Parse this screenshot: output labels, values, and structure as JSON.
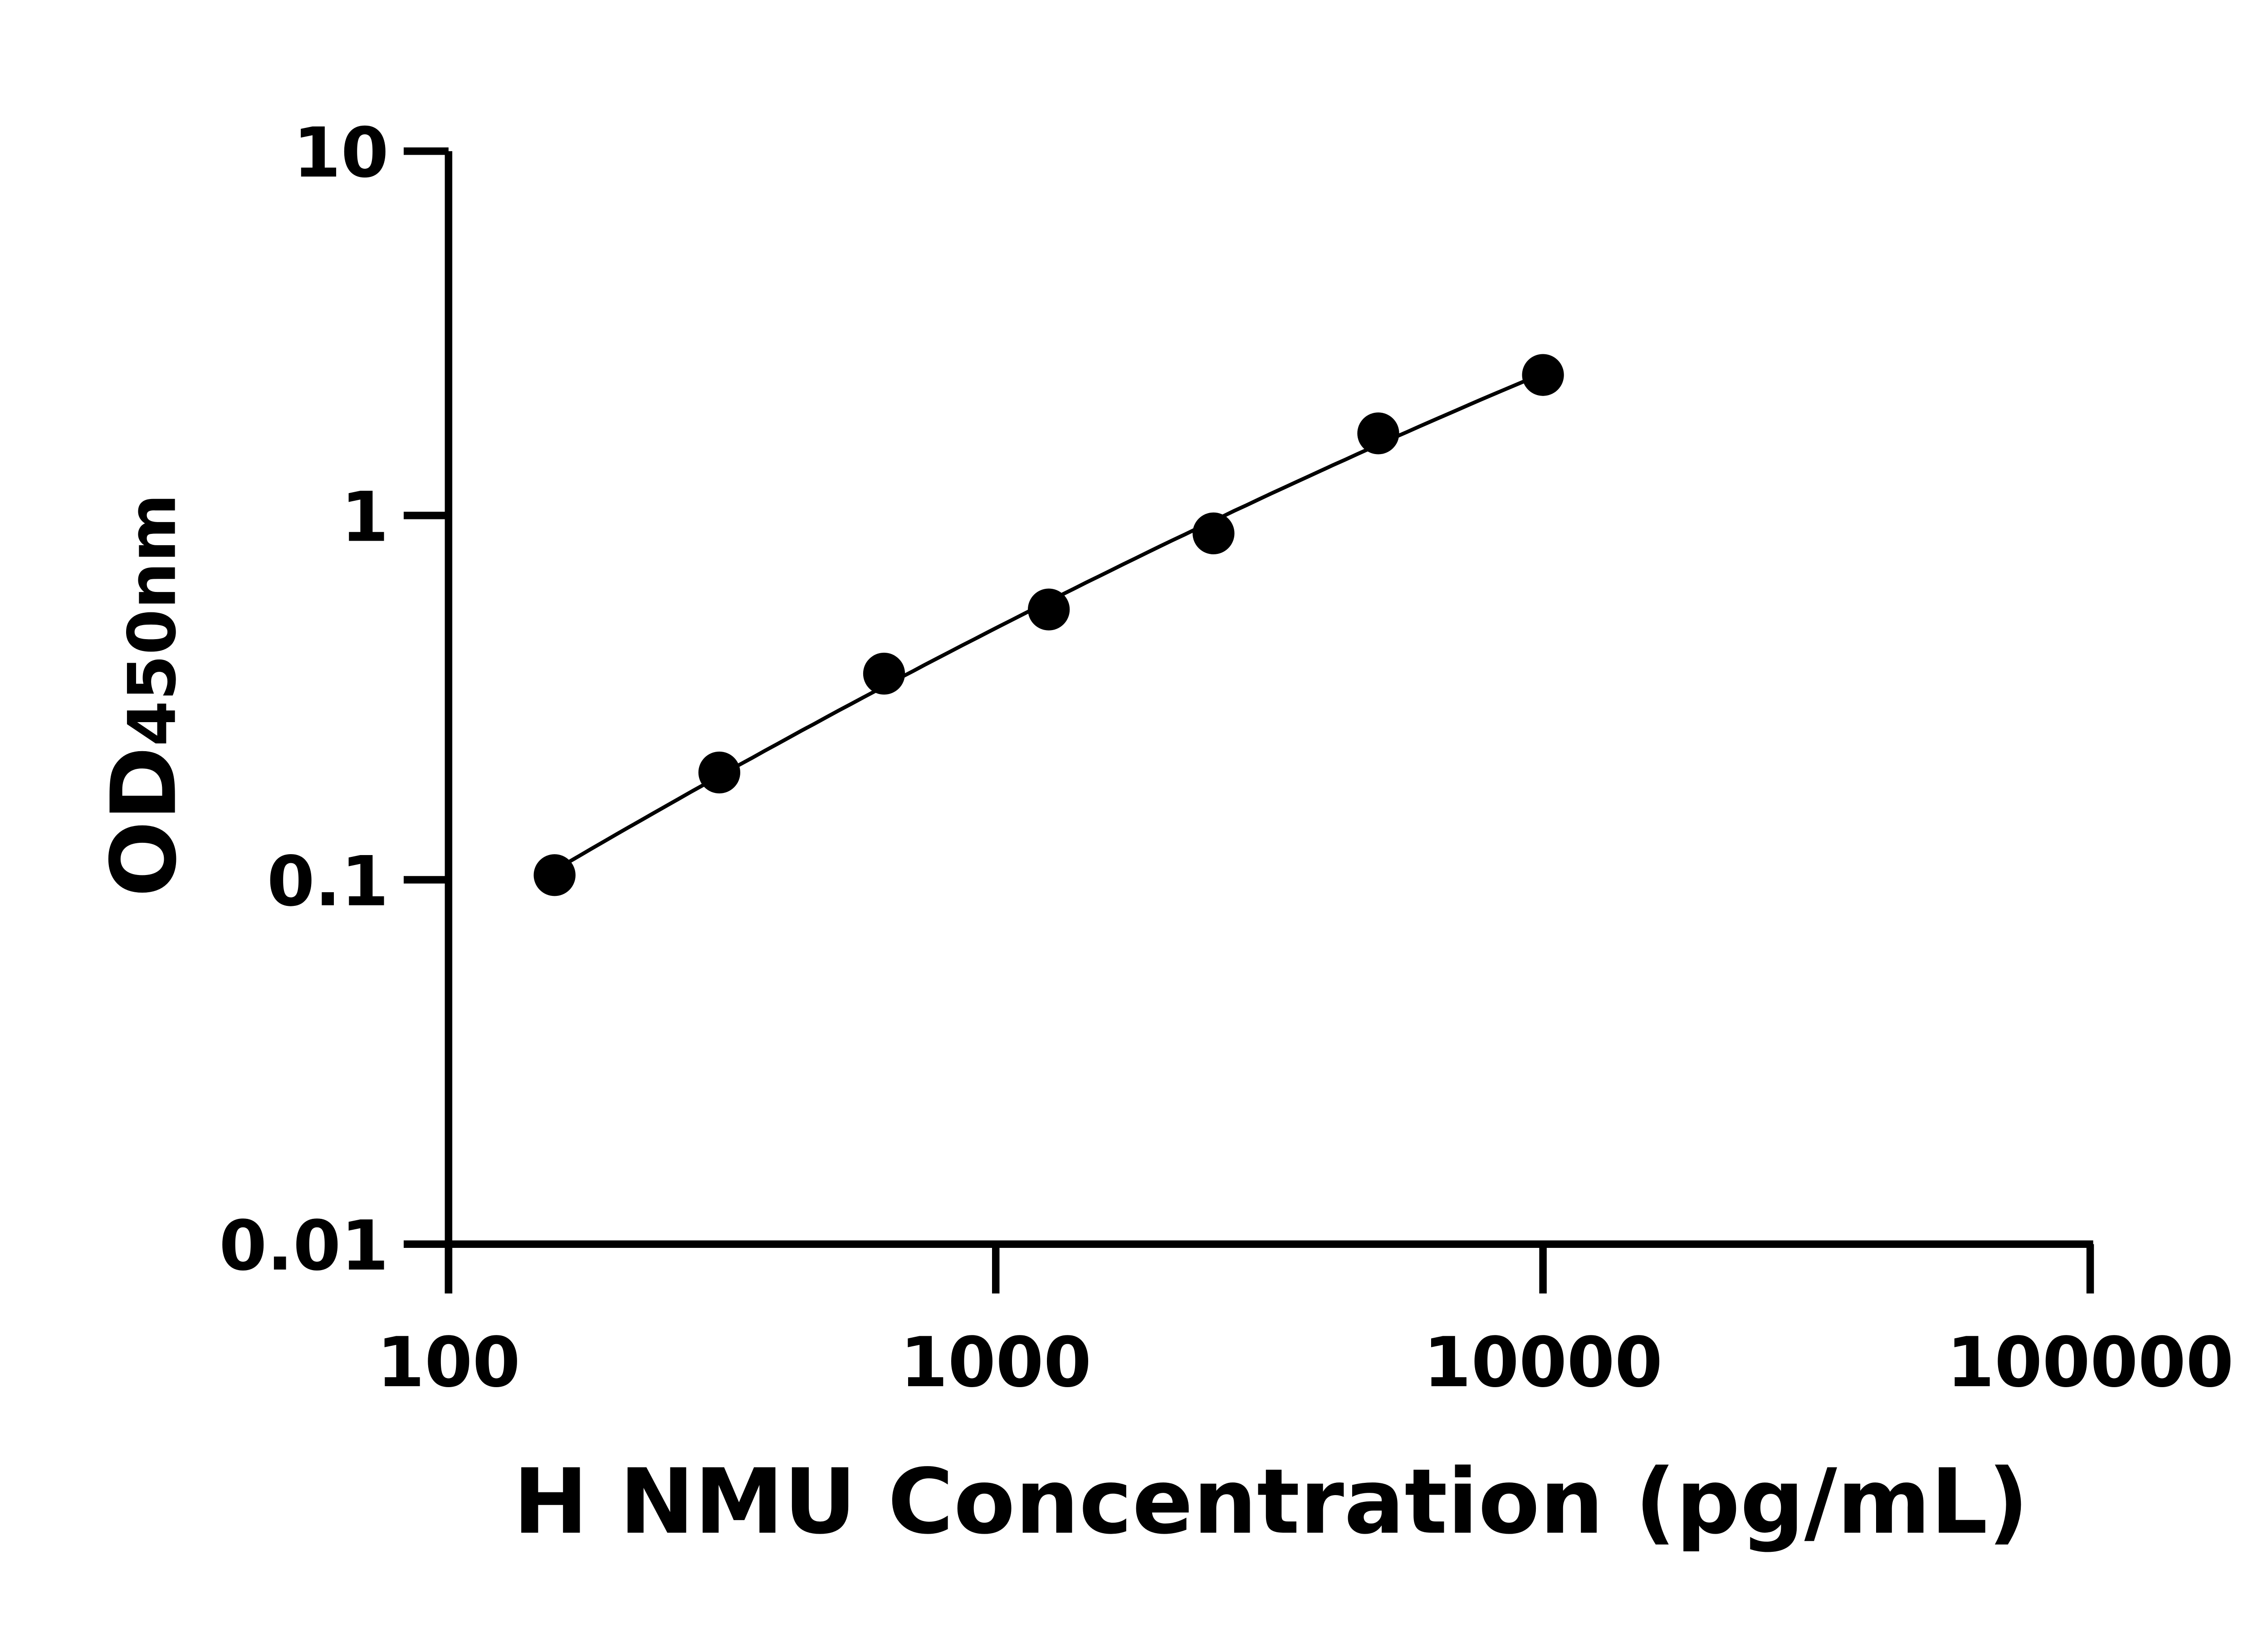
{
  "chart_data": {
    "type": "scatter",
    "title": "",
    "xlabel": "H NMU Concentration (pg/mL)",
    "ylabel": {
      "main": "OD",
      "sub": "450nm"
    },
    "x_scale": "log",
    "y_scale": "log",
    "xlim": [
      100,
      100000
    ],
    "ylim": [
      0.01,
      10
    ],
    "x_ticks": [
      "100",
      "1000",
      "10000",
      "100000"
    ],
    "y_ticks": [
      "0.01",
      "0.1",
      "1",
      "10"
    ],
    "grid": false,
    "legend": "none",
    "fit_curve": true,
    "marker_color": "#000000",
    "series": [
      {
        "x": [
          156.25,
          312.5,
          625,
          1250,
          2500,
          5000,
          10000
        ],
        "y": [
          0.103,
          0.197,
          0.368,
          0.552,
          0.893,
          1.68,
          2.43
        ]
      }
    ]
  }
}
